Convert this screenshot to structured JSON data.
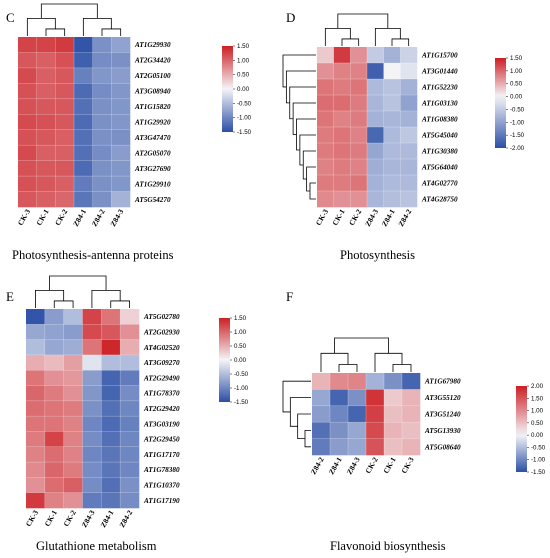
{
  "chart_data": [
    {
      "panel_label": "C",
      "type": "heatmap",
      "caption": "Photosynthesis-antenna proteins",
      "columns": [
        "CK-3",
        "CK-1",
        "CK-2",
        "Z84-1",
        "Z84-2",
        "Z84-3"
      ],
      "rows": [
        "AT1G29930",
        "AT2G34420",
        "AT2G05100",
        "AT3G08940",
        "AT1G15820",
        "AT1G29920",
        "AT3G47470",
        "AT2G05070",
        "AT3G27690",
        "AT1G29910",
        "AT5G54270"
      ],
      "values": [
        [
          1.25,
          1.25,
          1.3,
          -1.45,
          -0.9,
          -0.75
        ],
        [
          1.1,
          1.05,
          1.15,
          -1.35,
          -0.95,
          -0.9
        ],
        [
          1.2,
          1.05,
          1.1,
          -1.05,
          -0.85,
          -0.8
        ],
        [
          1.15,
          1.05,
          1.1,
          -1.25,
          -0.95,
          -0.85
        ],
        [
          1.15,
          1.1,
          1.1,
          -1.2,
          -0.9,
          -0.85
        ],
        [
          1.2,
          1.15,
          1.1,
          -1.25,
          -0.9,
          -0.85
        ],
        [
          1.15,
          1.1,
          1.05,
          -1.2,
          -0.9,
          -0.9
        ],
        [
          1.2,
          1.05,
          1.05,
          -1.2,
          -0.95,
          -0.8
        ],
        [
          1.15,
          1.1,
          1.1,
          -1.25,
          -0.9,
          -0.85
        ],
        [
          1.15,
          1.1,
          1.05,
          -1.1,
          -0.9,
          -0.85
        ],
        [
          1.1,
          1.05,
          1.0,
          -1.15,
          -0.9,
          -0.6
        ]
      ],
      "color_range": [
        -1.5,
        1.5
      ],
      "legend_ticks": [
        "1.50",
        "1.00",
        "0.50",
        "0.00",
        "-0.50",
        "-1.00",
        "-1.50"
      ],
      "legend_values": [
        1.5,
        1.0,
        0.5,
        0.0,
        -0.5,
        -1.0,
        -1.5
      ]
    },
    {
      "panel_label": "D",
      "type": "heatmap",
      "caption": "Photosynthesis",
      "columns": [
        "CK-3",
        "CK-1",
        "CK-2",
        "Z84-3",
        "Z84-1",
        "Z84-2"
      ],
      "rows": [
        "AT1G15700",
        "AT3G01440",
        "AT1G52230",
        "AT1G03130",
        "AT1G08380",
        "AT5G45040",
        "AT1G30380",
        "AT5G64040",
        "AT4G02770",
        "AT4G28750"
      ],
      "values": [
        [
          0.3,
          1.3,
          0.7,
          -0.5,
          -0.8,
          -0.4
        ],
        [
          0.7,
          0.8,
          0.8,
          -1.8,
          0.0,
          -0.2
        ],
        [
          0.9,
          0.85,
          0.9,
          -0.7,
          -0.6,
          -0.8
        ],
        [
          0.95,
          0.95,
          0.85,
          -0.75,
          -0.6,
          -1.0
        ],
        [
          0.9,
          0.8,
          0.85,
          -0.8,
          -0.75,
          -0.8
        ],
        [
          0.85,
          0.9,
          0.8,
          -1.7,
          -0.7,
          -0.55
        ],
        [
          0.85,
          0.9,
          0.85,
          -0.95,
          -0.7,
          -0.7
        ],
        [
          0.8,
          0.85,
          0.8,
          -0.85,
          -0.75,
          -0.75
        ],
        [
          0.85,
          0.85,
          0.9,
          -0.8,
          -0.7,
          -0.7
        ],
        [
          0.75,
          0.7,
          0.7,
          -0.75,
          -0.65,
          -0.6
        ]
      ],
      "color_range": [
        -2.0,
        1.5
      ],
      "legend_ticks": [
        "1.50",
        "1.00",
        "0.50",
        "0.00",
        "-0.50",
        "-1.00",
        "-1.50",
        "-2.00"
      ],
      "legend_values": [
        1.5,
        1.0,
        0.5,
        0.0,
        -0.5,
        -1.0,
        -1.5,
        -2.0
      ]
    },
    {
      "panel_label": "E",
      "type": "heatmap",
      "caption": "Glutathione metabolism",
      "columns": [
        "CK-3",
        "CK-1",
        "CK-2",
        "Z84-3",
        "Z84-1",
        "Z84-2"
      ],
      "rows": [
        "AT5G02780",
        "AT2G02930",
        "AT4G02520",
        "AT3G09270",
        "AT2G29490",
        "AT1G78370",
        "AT2G29420",
        "AT3G03190",
        "AT2G29450",
        "AT1G17170",
        "AT1G78380",
        "AT1G10370",
        "AT1G17190"
      ],
      "values": [
        [
          -1.45,
          -0.8,
          -0.5,
          1.25,
          0.9,
          0.25
        ],
        [
          -0.7,
          -0.75,
          -0.8,
          1.2,
          1.1,
          0.7
        ],
        [
          -0.5,
          -0.7,
          -0.65,
          0.9,
          1.45,
          0.5
        ],
        [
          0.5,
          0.4,
          0.6,
          -0.15,
          -0.5,
          -0.5
        ],
        [
          0.9,
          0.7,
          0.65,
          -0.8,
          -1.3,
          -1.1
        ],
        [
          1.0,
          0.85,
          0.7,
          -0.85,
          -1.3,
          -0.95
        ],
        [
          0.95,
          0.9,
          0.85,
          -0.9,
          -1.2,
          -1.0
        ],
        [
          0.9,
          0.9,
          0.8,
          -1.0,
          -1.25,
          -1.05
        ],
        [
          0.85,
          1.25,
          0.8,
          -0.95,
          -1.2,
          -1.0
        ],
        [
          0.8,
          0.95,
          0.8,
          -1.0,
          -1.15,
          -1.0
        ],
        [
          0.75,
          1.0,
          0.85,
          -0.95,
          -1.15,
          -1.0
        ],
        [
          0.7,
          0.95,
          1.05,
          -0.95,
          -1.2,
          -0.9
        ],
        [
          1.3,
          0.8,
          0.7,
          -1.1,
          -1.15,
          -0.95
        ]
      ],
      "color_range": [
        -1.5,
        1.5
      ],
      "legend_ticks": [
        "1.50",
        "1.00",
        "0.50",
        "0.00",
        "-0.50",
        "-1.00",
        "-1.50"
      ],
      "legend_values": [
        1.5,
        1.0,
        0.5,
        0.0,
        -0.5,
        -1.0,
        -1.5
      ]
    },
    {
      "panel_label": "F",
      "type": "heatmap",
      "caption": "Flavonoid biosynthesis",
      "columns": [
        "Z84-2",
        "Z84-1",
        "Z84-3",
        "CK-2",
        "CK-1",
        "CK-3"
      ],
      "rows": [
        "AT1G67980",
        "AT3G55120",
        "AT3G51240",
        "AT5G13930",
        "AT5G08640"
      ],
      "values": [
        [
          0.6,
          1.0,
          1.05,
          -0.6,
          -0.9,
          -1.3
        ],
        [
          -0.7,
          -1.3,
          -0.9,
          1.8,
          0.4,
          0.6
        ],
        [
          -0.8,
          -1.0,
          -1.3,
          1.7,
          0.5,
          0.6
        ],
        [
          -1.2,
          -0.9,
          -0.7,
          1.6,
          0.6,
          0.5
        ],
        [
          -1.1,
          -0.8,
          -0.7,
          1.5,
          0.5,
          0.6
        ]
      ],
      "color_range": [
        -1.5,
        2.0
      ],
      "legend_ticks": [
        "2.00",
        "1.50",
        "1.00",
        "0.50",
        "0.00",
        "-0.50",
        "-1.00",
        "-1.50"
      ],
      "legend_values": [
        2.0,
        1.5,
        1.0,
        0.5,
        0.0,
        -0.5,
        -1.0,
        -1.5
      ]
    }
  ],
  "colors": {
    "low": "#2b4fa6",
    "mid": "#f4f4f7",
    "high": "#cc1f24"
  }
}
